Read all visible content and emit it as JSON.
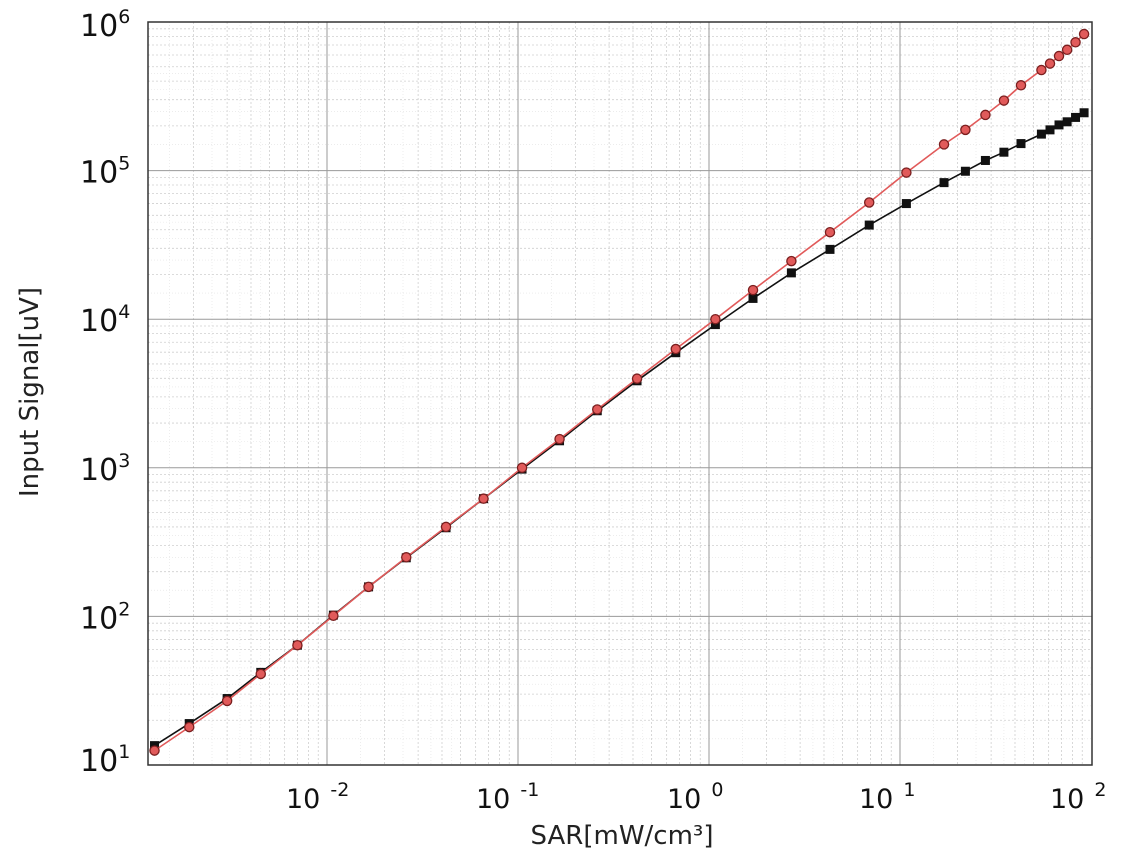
{
  "chart_data": {
    "type": "line",
    "title": "",
    "xlabel": "SAR[mW/cm³]",
    "ylabel": "Input Signal[uV]",
    "xscale": "log",
    "yscale": "log",
    "xlim": [
      0.001,
      100
    ],
    "ylim": [
      10,
      1000000
    ],
    "grid": true,
    "legend": "none",
    "x_ticks": [
      {
        "base": "10",
        "exp": "-2",
        "value": 0.01
      },
      {
        "base": "10",
        "exp": "-1",
        "value": 0.1
      },
      {
        "base": "10",
        "exp": "0",
        "value": 1
      },
      {
        "base": "10",
        "exp": "1",
        "value": 10
      },
      {
        "base": "10",
        "exp": "2",
        "value": 100
      }
    ],
    "y_ticks": [
      {
        "base": "10",
        "exp": "1",
        "value": 10
      },
      {
        "base": "10",
        "exp": "2",
        "value": 100
      },
      {
        "base": "10",
        "exp": "3",
        "value": 1000
      },
      {
        "base": "10",
        "exp": "4",
        "value": 10000
      },
      {
        "base": "10",
        "exp": "5",
        "value": 100000
      },
      {
        "base": "10",
        "exp": "6",
        "value": 1000000
      }
    ],
    "x": [
      0.00125,
      0.0019,
      0.003,
      0.0045,
      0.007,
      0.0108,
      0.0165,
      0.026,
      0.042,
      0.066,
      0.105,
      0.165,
      0.26,
      0.42,
      0.67,
      1.08,
      1.7,
      2.7,
      4.3,
      6.9,
      10.8,
      17,
      22,
      28,
      35,
      43,
      55,
      61,
      68,
      75,
      83,
      92
    ],
    "series": [
      {
        "name": "",
        "color": "#111111",
        "marker": "square",
        "values": [
          13.5,
          19,
          28,
          42,
          64,
          102,
          158,
          248,
          395,
          620,
          980,
          1520,
          2420,
          3850,
          5950,
          9200,
          13800,
          20500,
          29500,
          43000,
          60000,
          83000,
          99000,
          117000,
          133000,
          152000,
          176000,
          188000,
          203000,
          213000,
          228000,
          245000
        ]
      },
      {
        "name": "",
        "color": "#e15a5a",
        "marker": "circle",
        "values": [
          12.5,
          18,
          27,
          41,
          64,
          101,
          158,
          250,
          400,
          620,
          1000,
          1560,
          2470,
          3980,
          6300,
          10000,
          15700,
          24600,
          38500,
          61000,
          97000,
          150000,
          188000,
          237000,
          296000,
          375000,
          475000,
          525000,
          590000,
          650000,
          730000,
          830000
        ]
      }
    ]
  }
}
